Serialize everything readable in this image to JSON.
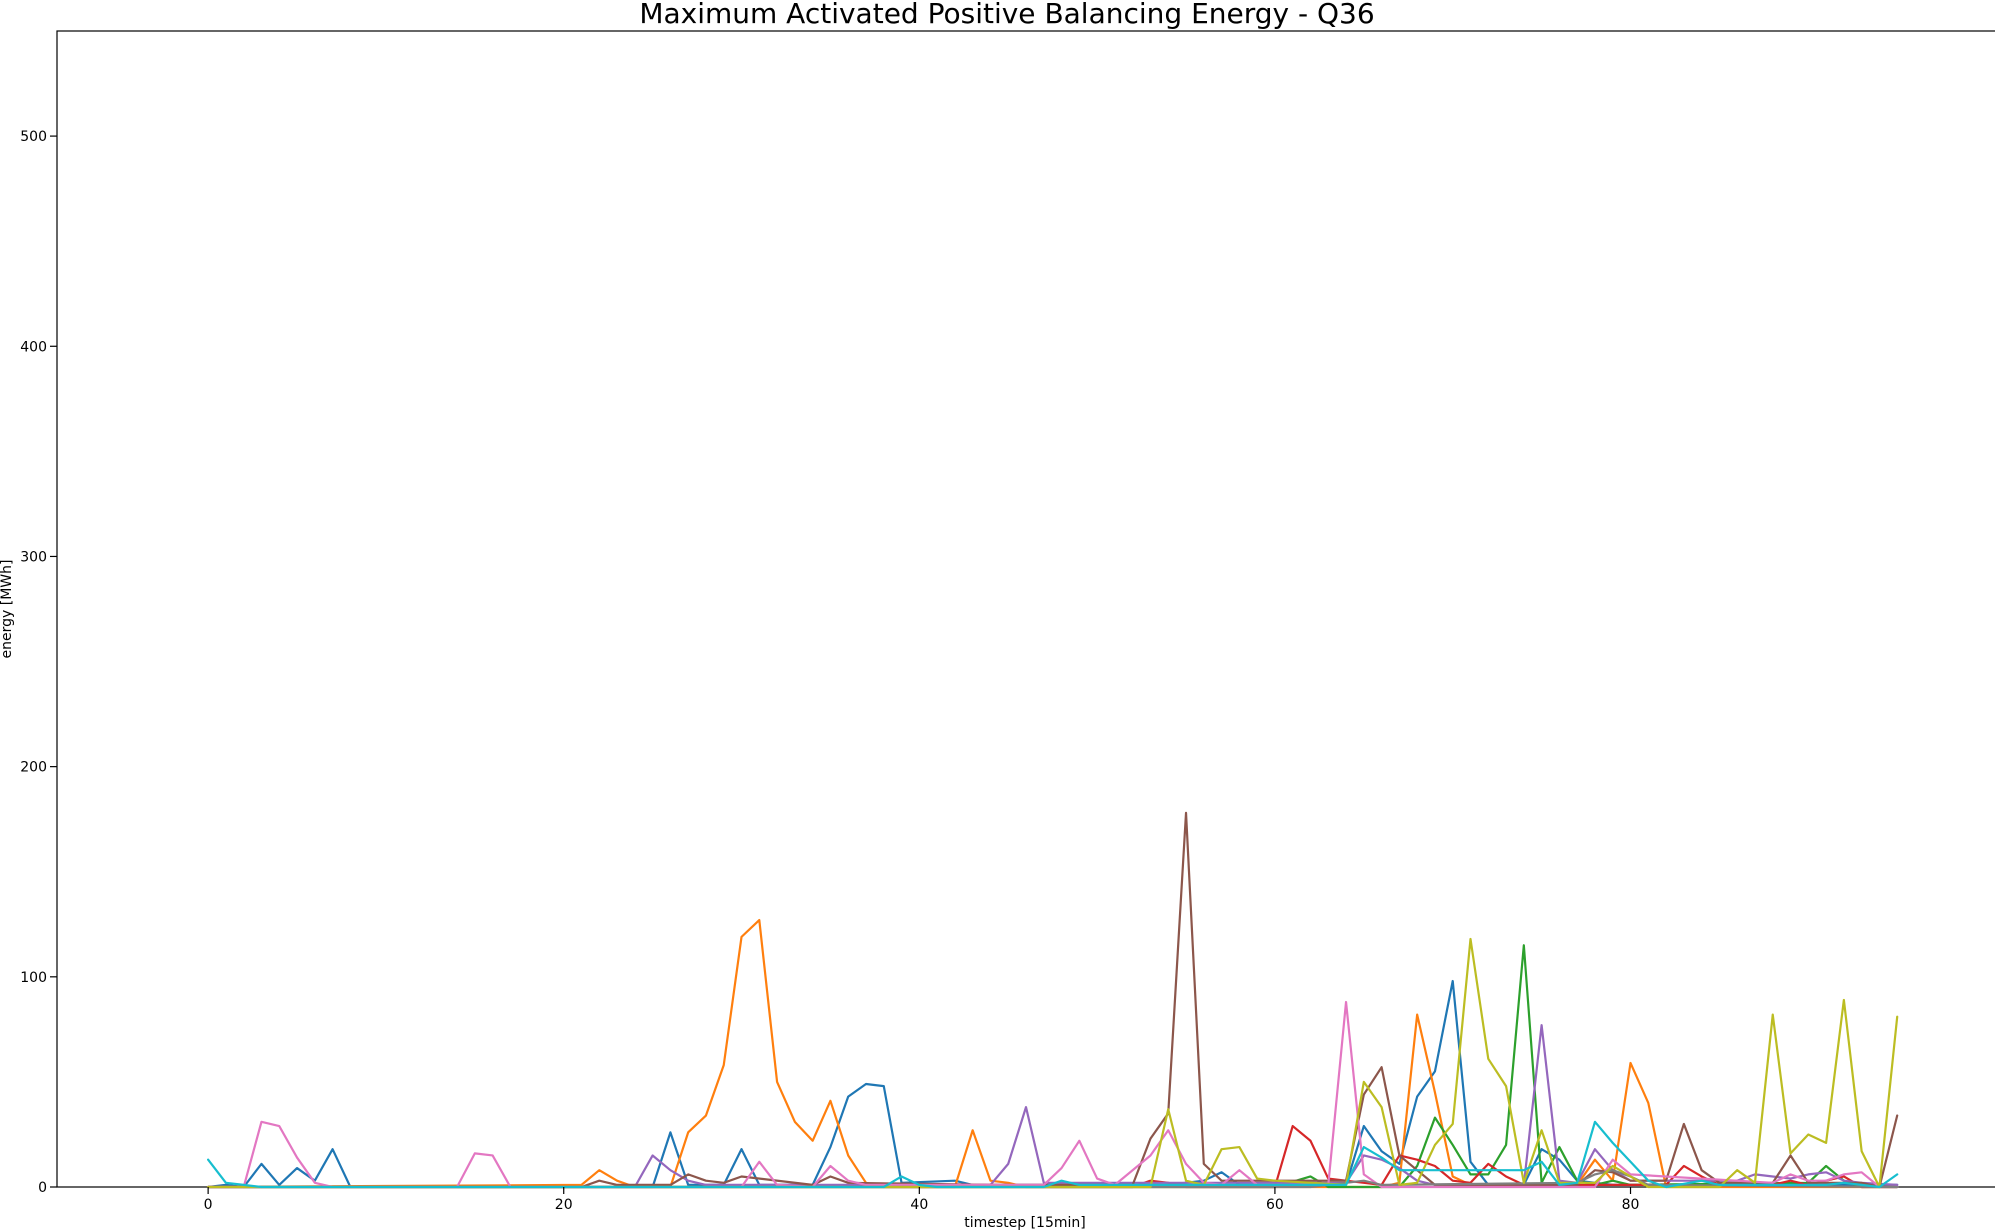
{
  "chart_data": {
    "type": "line",
    "title": "Maximum Activated Positive Balancing Energy - Q36",
    "xlabel": "timestep [15min]",
    "ylabel": "energy [MWh]",
    "xlim": [
      -8.5,
      100.5
    ],
    "ylim": [
      0,
      550
    ],
    "xticks": [
      0,
      20,
      40,
      60,
      80
    ],
    "yticks": [
      0,
      100,
      200,
      300,
      400,
      500
    ],
    "grid": false,
    "legend": "none",
    "series": [
      {
        "color": "#1f77b4",
        "points": [
          [
            0,
            0
          ],
          [
            1,
            1
          ],
          [
            2,
            0
          ],
          [
            3,
            11
          ],
          [
            4,
            1
          ],
          [
            5,
            9
          ],
          [
            6,
            3
          ],
          [
            7,
            18
          ],
          [
            8,
            0
          ],
          [
            20,
            0
          ],
          [
            25,
            0
          ],
          [
            26,
            26
          ],
          [
            27,
            1
          ],
          [
            29,
            1
          ],
          [
            30,
            18
          ],
          [
            31,
            1
          ],
          [
            34,
            1
          ],
          [
            35,
            19
          ],
          [
            36,
            43
          ],
          [
            37,
            49
          ],
          [
            38,
            48
          ],
          [
            39,
            2
          ],
          [
            42,
            3
          ],
          [
            43,
            1
          ],
          [
            54,
            1
          ],
          [
            56,
            3
          ],
          [
            57,
            7
          ],
          [
            58,
            1
          ],
          [
            62,
            1
          ],
          [
            64,
            1
          ],
          [
            65,
            29
          ],
          [
            66,
            17
          ],
          [
            67,
            11
          ],
          [
            68,
            43
          ],
          [
            69,
            55
          ],
          [
            70,
            98
          ],
          [
            71,
            12
          ],
          [
            72,
            1
          ],
          [
            74,
            1
          ],
          [
            75,
            18
          ],
          [
            76,
            13
          ],
          [
            77,
            3
          ],
          [
            79,
            1
          ],
          [
            90,
            1
          ],
          [
            95,
            1
          ]
        ]
      },
      {
        "color": "#ff7f0e",
        "points": [
          [
            0,
            0
          ],
          [
            21,
            1
          ],
          [
            22,
            8
          ],
          [
            23,
            3
          ],
          [
            24,
            0
          ],
          [
            26,
            0
          ],
          [
            27,
            26
          ],
          [
            28,
            34
          ],
          [
            29,
            58
          ],
          [
            30,
            119
          ],
          [
            31,
            127
          ],
          [
            32,
            50
          ],
          [
            33,
            31
          ],
          [
            34,
            22
          ],
          [
            35,
            41
          ],
          [
            36,
            15
          ],
          [
            37,
            2
          ],
          [
            38,
            0
          ],
          [
            42,
            0
          ],
          [
            43,
            27
          ],
          [
            44,
            3
          ],
          [
            45,
            2
          ],
          [
            46,
            0
          ],
          [
            66,
            0
          ],
          [
            67,
            2
          ],
          [
            68,
            82
          ],
          [
            69,
            45
          ],
          [
            70,
            5
          ],
          [
            71,
            1
          ],
          [
            77,
            1
          ],
          [
            78,
            13
          ],
          [
            79,
            3
          ],
          [
            80,
            59
          ],
          [
            81,
            40
          ],
          [
            82,
            0
          ],
          [
            95,
            0
          ]
        ]
      },
      {
        "color": "#2ca02c",
        "points": [
          [
            0,
            0
          ],
          [
            60,
            0
          ],
          [
            62,
            5
          ],
          [
            63,
            0
          ],
          [
            67,
            0
          ],
          [
            68,
            10
          ],
          [
            69,
            33
          ],
          [
            70,
            20
          ],
          [
            71,
            6
          ],
          [
            72,
            6
          ],
          [
            73,
            20
          ],
          [
            74,
            115
          ],
          [
            75,
            2
          ],
          [
            76,
            19
          ],
          [
            77,
            3
          ],
          [
            78,
            1
          ],
          [
            79,
            3
          ],
          [
            80,
            1
          ],
          [
            90,
            2
          ],
          [
            91,
            10
          ],
          [
            92,
            3
          ],
          [
            93,
            0
          ],
          [
            95,
            0
          ]
        ]
      },
      {
        "color": "#d62728",
        "points": [
          [
            0,
            0
          ],
          [
            52,
            0
          ],
          [
            53,
            3
          ],
          [
            54,
            2
          ],
          [
            55,
            0
          ],
          [
            60,
            0
          ],
          [
            61,
            29
          ],
          [
            62,
            22
          ],
          [
            63,
            4
          ],
          [
            64,
            3
          ],
          [
            65,
            2
          ],
          [
            66,
            1
          ],
          [
            67,
            15
          ],
          [
            68,
            13
          ],
          [
            69,
            10
          ],
          [
            70,
            3
          ],
          [
            71,
            2
          ],
          [
            72,
            11
          ],
          [
            73,
            5
          ],
          [
            74,
            1
          ],
          [
            82,
            1
          ],
          [
            83,
            10
          ],
          [
            84,
            5
          ],
          [
            85,
            1
          ],
          [
            88,
            1
          ],
          [
            89,
            3
          ],
          [
            90,
            1
          ],
          [
            92,
            5
          ],
          [
            93,
            0
          ],
          [
            95,
            0
          ]
        ]
      },
      {
        "color": "#9467bd",
        "points": [
          [
            0,
            0
          ],
          [
            24,
            0
          ],
          [
            25,
            15
          ],
          [
            26,
            8
          ],
          [
            27,
            3
          ],
          [
            28,
            1
          ],
          [
            44,
            1
          ],
          [
            45,
            11
          ],
          [
            46,
            38
          ],
          [
            47,
            2
          ],
          [
            64,
            2
          ],
          [
            65,
            15
          ],
          [
            66,
            13
          ],
          [
            67,
            9
          ],
          [
            68,
            3
          ],
          [
            69,
            1
          ],
          [
            74,
            1
          ],
          [
            75,
            77
          ],
          [
            76,
            3
          ],
          [
            77,
            2
          ],
          [
            78,
            18
          ],
          [
            79,
            8
          ],
          [
            80,
            3
          ],
          [
            86,
            3
          ],
          [
            87,
            6
          ],
          [
            88,
            5
          ],
          [
            89,
            4
          ],
          [
            90,
            6
          ],
          [
            91,
            7
          ],
          [
            92,
            3
          ],
          [
            93,
            2
          ],
          [
            95,
            1
          ]
        ]
      },
      {
        "color": "#8c564b",
        "points": [
          [
            0,
            0
          ],
          [
            21,
            0
          ],
          [
            22,
            3
          ],
          [
            23,
            1
          ],
          [
            26,
            1
          ],
          [
            27,
            6
          ],
          [
            28,
            3
          ],
          [
            29,
            2
          ],
          [
            30,
            5
          ],
          [
            34,
            1
          ],
          [
            35,
            5
          ],
          [
            36,
            2
          ],
          [
            44,
            1
          ],
          [
            52,
            1
          ],
          [
            53,
            23
          ],
          [
            54,
            35
          ],
          [
            55,
            178
          ],
          [
            56,
            11
          ],
          [
            57,
            3
          ],
          [
            64,
            3
          ],
          [
            65,
            44
          ],
          [
            66,
            57
          ],
          [
            67,
            15
          ],
          [
            68,
            8
          ],
          [
            69,
            1
          ],
          [
            77,
            1
          ],
          [
            78,
            8
          ],
          [
            79,
            7
          ],
          [
            80,
            3
          ],
          [
            82,
            3
          ],
          [
            83,
            30
          ],
          [
            84,
            8
          ],
          [
            85,
            2
          ],
          [
            88,
            2
          ],
          [
            89,
            15
          ],
          [
            90,
            2
          ],
          [
            93,
            2
          ],
          [
            94,
            0
          ],
          [
            95,
            34
          ]
        ]
      },
      {
        "color": "#e377c2",
        "points": [
          [
            0,
            0
          ],
          [
            2,
            0
          ],
          [
            3,
            31
          ],
          [
            4,
            29
          ],
          [
            5,
            14
          ],
          [
            6,
            2
          ],
          [
            7,
            0
          ],
          [
            14,
            0
          ],
          [
            15,
            16
          ],
          [
            16,
            15
          ],
          [
            17,
            0
          ],
          [
            30,
            0
          ],
          [
            31,
            12
          ],
          [
            32,
            1
          ],
          [
            34,
            0
          ],
          [
            35,
            10
          ],
          [
            36,
            3
          ],
          [
            37,
            1
          ],
          [
            47,
            1
          ],
          [
            48,
            9
          ],
          [
            49,
            22
          ],
          [
            50,
            4
          ],
          [
            51,
            1
          ],
          [
            53,
            15
          ],
          [
            54,
            27
          ],
          [
            55,
            11
          ],
          [
            56,
            2
          ],
          [
            57,
            1
          ],
          [
            58,
            8
          ],
          [
            59,
            1
          ],
          [
            63,
            1
          ],
          [
            64,
            88
          ],
          [
            65,
            6
          ],
          [
            66,
            0
          ],
          [
            78,
            0
          ],
          [
            79,
            13
          ],
          [
            80,
            6
          ],
          [
            88,
            2
          ],
          [
            89,
            6
          ],
          [
            90,
            3
          ],
          [
            91,
            3
          ],
          [
            92,
            6
          ],
          [
            93,
            7
          ],
          [
            94,
            0
          ],
          [
            95,
            0
          ]
        ]
      },
      {
        "color": "#7f7f7f",
        "points": [
          [
            0,
            0
          ],
          [
            60,
            0
          ],
          [
            62,
            0
          ],
          [
            63,
            1
          ],
          [
            64,
            2
          ],
          [
            65,
            3
          ],
          [
            66,
            1
          ],
          [
            77,
            2
          ],
          [
            78,
            6
          ],
          [
            79,
            8
          ],
          [
            80,
            5
          ],
          [
            81,
            1
          ],
          [
            95,
            0
          ]
        ]
      },
      {
        "color": "#bcbd22",
        "points": [
          [
            0,
            0
          ],
          [
            53,
            0
          ],
          [
            54,
            37
          ],
          [
            55,
            3
          ],
          [
            56,
            1
          ],
          [
            57,
            18
          ],
          [
            58,
            19
          ],
          [
            59,
            4
          ],
          [
            60,
            3
          ],
          [
            64,
            1
          ],
          [
            65,
            50
          ],
          [
            66,
            38
          ],
          [
            67,
            1
          ],
          [
            68,
            2
          ],
          [
            69,
            20
          ],
          [
            70,
            30
          ],
          [
            71,
            118
          ],
          [
            72,
            61
          ],
          [
            73,
            48
          ],
          [
            74,
            2
          ],
          [
            75,
            27
          ],
          [
            76,
            2
          ],
          [
            78,
            2
          ],
          [
            79,
            10
          ],
          [
            80,
            5
          ],
          [
            81,
            0
          ],
          [
            85,
            0
          ],
          [
            86,
            8
          ],
          [
            87,
            2
          ],
          [
            88,
            82
          ],
          [
            89,
            16
          ],
          [
            90,
            25
          ],
          [
            91,
            21
          ],
          [
            92,
            89
          ],
          [
            93,
            17
          ],
          [
            94,
            0
          ],
          [
            95,
            81
          ]
        ]
      },
      {
        "color": "#17becf",
        "points": [
          [
            0,
            13
          ],
          [
            1,
            2
          ],
          [
            2,
            1
          ],
          [
            3,
            0
          ],
          [
            38,
            0
          ],
          [
            39,
            5
          ],
          [
            40,
            1
          ],
          [
            41,
            0
          ],
          [
            47,
            0
          ],
          [
            48,
            3
          ],
          [
            49,
            1
          ],
          [
            53,
            1
          ],
          [
            64,
            1
          ],
          [
            65,
            19
          ],
          [
            66,
            14
          ],
          [
            67,
            8
          ],
          [
            74,
            8
          ],
          [
            75,
            12
          ],
          [
            76,
            1
          ],
          [
            77,
            2
          ],
          [
            78,
            31
          ],
          [
            79,
            21
          ],
          [
            80,
            12
          ],
          [
            81,
            3
          ],
          [
            82,
            0
          ],
          [
            84,
            3
          ],
          [
            85,
            1
          ],
          [
            91,
            1
          ],
          [
            92,
            2
          ],
          [
            93,
            1
          ],
          [
            94,
            0
          ],
          [
            95,
            6
          ]
        ]
      }
    ]
  }
}
